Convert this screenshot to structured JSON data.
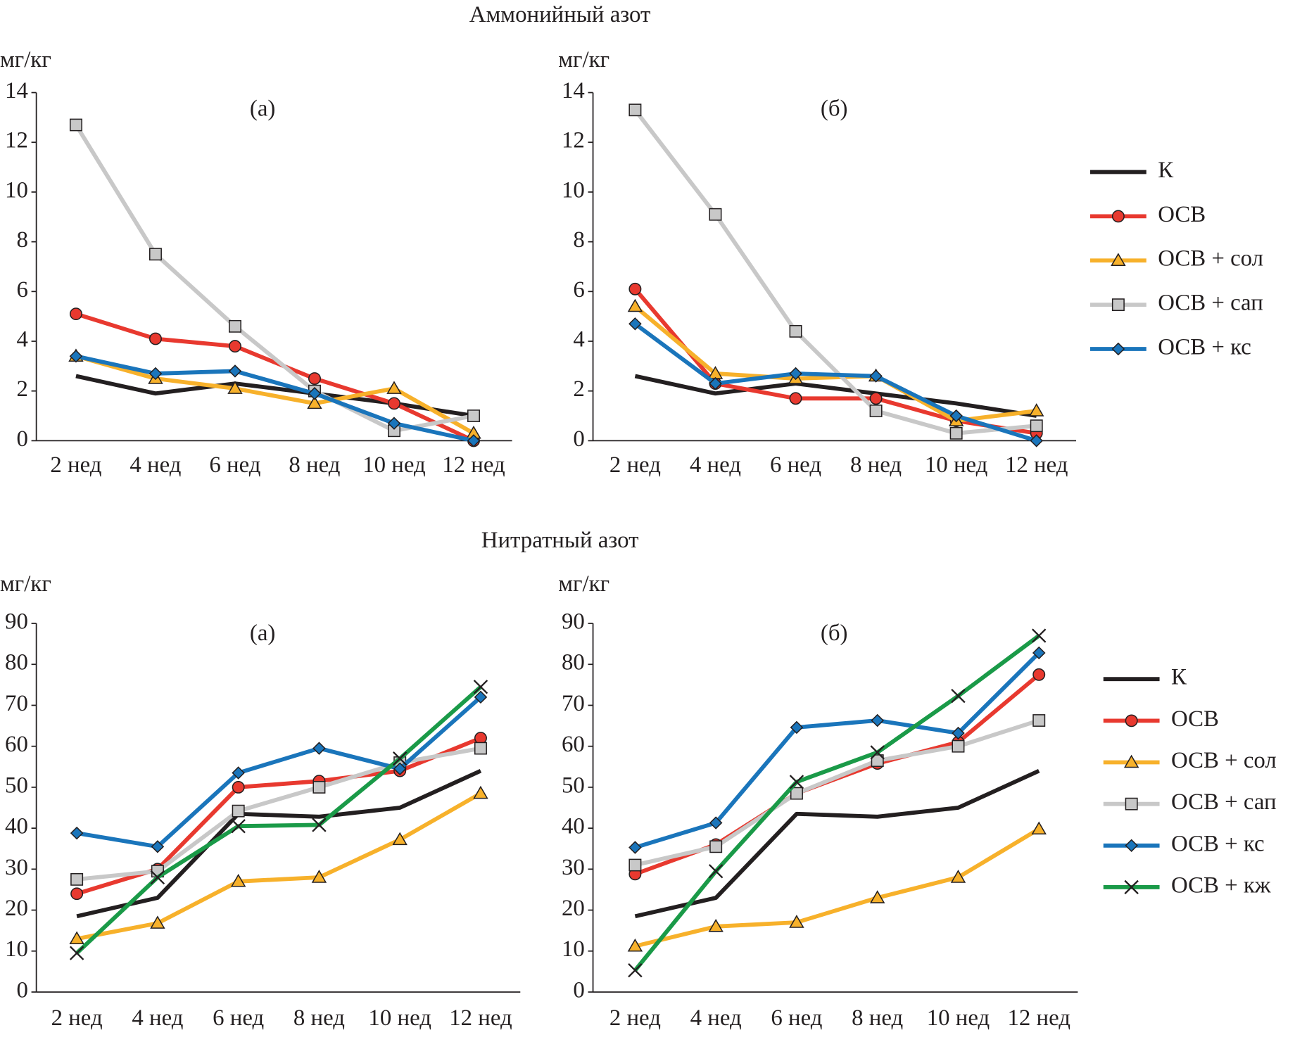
{
  "headings": [
    "Аммонийный азот",
    "Нитратный азот"
  ],
  "chart_data": [
    {
      "type": "line",
      "title": "(а)",
      "ylabel": "мг/кг",
      "categories": [
        "2 нед",
        "4 нед",
        "6 нед",
        "8 нед",
        "10 нед",
        "12 нед"
      ],
      "ylim": [
        0,
        14
      ],
      "yticks": [
        0,
        2,
        4,
        6,
        8,
        10,
        12,
        14
      ],
      "series": [
        {
          "name": "К",
          "color": "#231f20",
          "marker": "none",
          "values": [
            2.6,
            1.9,
            2.3,
            1.9,
            1.5,
            1.0
          ]
        },
        {
          "name": "ОСВ",
          "color": "#e8392f",
          "marker": "circle",
          "values": [
            5.1,
            4.1,
            3.8,
            2.5,
            1.5,
            0
          ]
        },
        {
          "name": "ОСВ + сол",
          "color": "#f7b12b",
          "marker": "triangle",
          "values": [
            3.4,
            2.5,
            2.1,
            1.5,
            2.1,
            0.3
          ]
        },
        {
          "name": "ОСВ + сап",
          "color": "#c8c8c8",
          "marker": "square",
          "values": [
            12.7,
            7.5,
            4.6,
            2.0,
            0.4,
            1.0
          ]
        },
        {
          "name": "ОСВ + кс",
          "color": "#1a75bb",
          "marker": "diamond",
          "values": [
            3.4,
            2.7,
            2.8,
            1.9,
            0.7,
            0
          ]
        }
      ]
    },
    {
      "type": "line",
      "title": "(б)",
      "ylabel": "мг/кг",
      "legend": "right",
      "categories": [
        "2 нед",
        "4 нед",
        "6 нед",
        "8 нед",
        "10 нед",
        "12 нед"
      ],
      "ylim": [
        0,
        14
      ],
      "yticks": [
        0,
        2,
        4,
        6,
        8,
        10,
        12,
        14
      ],
      "series": [
        {
          "name": "К",
          "color": "#231f20",
          "marker": "none",
          "values": [
            2.6,
            1.9,
            2.3,
            1.9,
            1.5,
            1.0
          ]
        },
        {
          "name": "ОСВ",
          "color": "#e8392f",
          "marker": "circle",
          "values": [
            6.1,
            2.3,
            1.7,
            1.7,
            0.8,
            0.3
          ]
        },
        {
          "name": "ОСВ + сол",
          "color": "#f7b12b",
          "marker": "triangle",
          "values": [
            5.4,
            2.7,
            2.5,
            2.6,
            0.8,
            1.2
          ]
        },
        {
          "name": "ОСВ + сап",
          "color": "#c8c8c8",
          "marker": "square",
          "values": [
            13.3,
            9.1,
            4.4,
            1.2,
            0.3,
            0.6
          ]
        },
        {
          "name": "ОСВ + кс",
          "color": "#1a75bb",
          "marker": "diamond",
          "values": [
            4.7,
            2.3,
            2.7,
            2.6,
            1.0,
            0
          ]
        }
      ]
    },
    {
      "type": "line",
      "title": "(а)",
      "ylabel": "мг/кг",
      "categories": [
        "2 нед",
        "4 нед",
        "6 нед",
        "8 нед",
        "10 нед",
        "12 нед"
      ],
      "ylim": [
        0,
        90
      ],
      "yticks": [
        0,
        10,
        20,
        30,
        40,
        50,
        60,
        70,
        80,
        90
      ],
      "series": [
        {
          "name": "К",
          "color": "#231f20",
          "marker": "none",
          "values": [
            18.5,
            23,
            43.5,
            42.8,
            45,
            54
          ]
        },
        {
          "name": "ОСВ",
          "color": "#e8392f",
          "marker": "circle",
          "values": [
            24,
            30,
            50,
            51.5,
            54,
            62
          ]
        },
        {
          "name": "ОСВ + сол",
          "color": "#f7b12b",
          "marker": "triangle",
          "values": [
            13,
            16.8,
            27,
            28,
            37.2,
            48.5
          ]
        },
        {
          "name": "ОСВ + сап",
          "color": "#c8c8c8",
          "marker": "square",
          "values": [
            27.5,
            29.5,
            44.2,
            50,
            56,
            59.5
          ]
        },
        {
          "name": "ОСВ + кс",
          "color": "#1a75bb",
          "marker": "diamond",
          "values": [
            38.8,
            35.5,
            53.5,
            59.5,
            54.5,
            72
          ]
        },
        {
          "name": "ОСВ + кж",
          "color": "#1a9a48",
          "marker": "cross",
          "values": [
            9.5,
            28,
            40.5,
            40.8,
            57,
            74.5
          ]
        }
      ]
    },
    {
      "type": "line",
      "title": "(б)",
      "ylabel": "мг/кг",
      "legend": "right",
      "categories": [
        "2 нед",
        "4 нед",
        "6 нед",
        "8 нед",
        "10 нед",
        "12 нед"
      ],
      "ylim": [
        0,
        90
      ],
      "yticks": [
        0,
        10,
        20,
        30,
        40,
        50,
        60,
        70,
        80,
        90
      ],
      "series": [
        {
          "name": "К",
          "color": "#231f20",
          "marker": "none",
          "values": [
            18.5,
            23,
            43.5,
            42.8,
            45,
            54
          ]
        },
        {
          "name": "ОСВ",
          "color": "#e8392f",
          "marker": "circle",
          "values": [
            28.8,
            36,
            48.5,
            55.8,
            61,
            77.5
          ]
        },
        {
          "name": "ОСВ + сол",
          "color": "#f7b12b",
          "marker": "triangle",
          "values": [
            11.2,
            16,
            17,
            23,
            28,
            39.8
          ]
        },
        {
          "name": "ОСВ + сап",
          "color": "#c8c8c8",
          "marker": "square",
          "values": [
            31,
            35.5,
            48.5,
            56.5,
            60,
            66.3
          ]
        },
        {
          "name": "ОСВ + кс",
          "color": "#1a75bb",
          "marker": "diamond",
          "values": [
            35.3,
            41.3,
            64.6,
            66.3,
            63.2,
            82.8
          ]
        },
        {
          "name": "ОСВ + кж",
          "color": "#1a9a48",
          "marker": "cross",
          "values": [
            5.3,
            29.5,
            51.3,
            58.5,
            72.3,
            87
          ]
        }
      ]
    }
  ]
}
